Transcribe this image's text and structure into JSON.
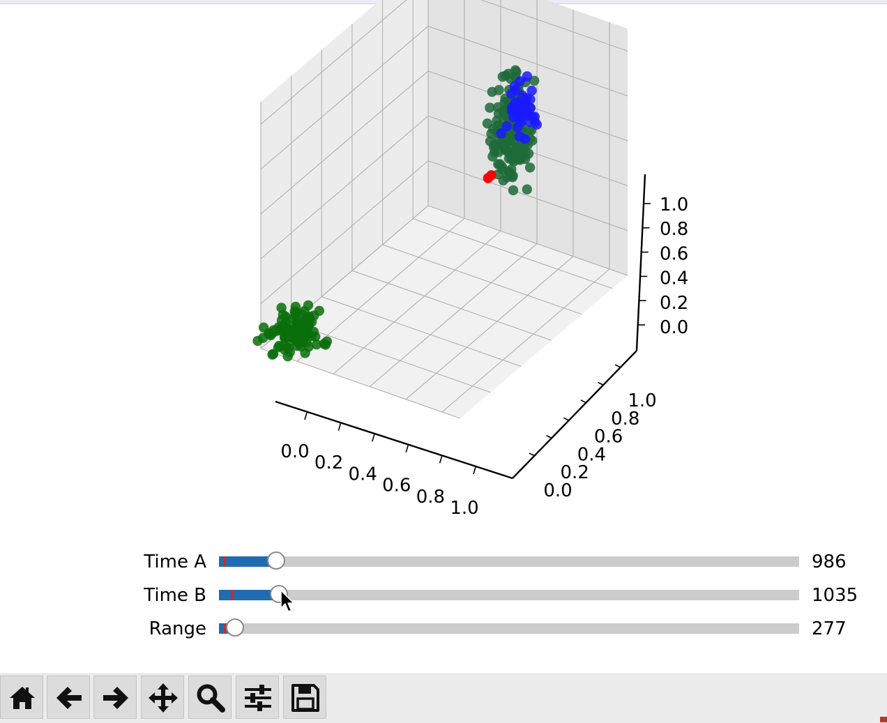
{
  "chart_data": {
    "type": "scatter3d",
    "x_ticks": [
      "0.0",
      "0.2",
      "0.4",
      "0.6",
      "0.8",
      "1.0"
    ],
    "y_ticks": [
      "0.0",
      "0.2",
      "0.4",
      "0.6",
      "0.8",
      "1.0"
    ],
    "z_ticks": [
      "0.0",
      "0.2",
      "0.4",
      "0.6",
      "0.8",
      "1.0"
    ],
    "xlim": [
      0,
      1.1
    ],
    "ylim": [
      0,
      1.1
    ],
    "zlim": [
      0,
      1.1
    ],
    "grid": true,
    "colors": {
      "cluster_a": "#0a6e0a",
      "cluster_b": "#0a6e0a",
      "cluster_b_blue": "#1a1aff",
      "marker": "#ff0000"
    },
    "series": [
      {
        "color": "#0a6e0a",
        "cluster_center": [
          0.1,
          0.1,
          0.05
        ],
        "cluster_spread": [
          0.12,
          0.12,
          0.06
        ],
        "count": 110
      },
      {
        "color": "#1f6a3a",
        "cluster_center": [
          0.62,
          0.9,
          0.62
        ],
        "cluster_spread": [
          0.09,
          0.09,
          0.22
        ],
        "count": 150
      },
      {
        "color": "#1a1aff",
        "cluster_center": [
          0.65,
          0.93,
          0.72
        ],
        "cluster_spread": [
          0.07,
          0.07,
          0.12
        ],
        "count": 40
      },
      {
        "color": "#ff0000",
        "points": [
          [
            0.54,
            0.85,
            0.42
          ],
          [
            0.55,
            0.86,
            0.43
          ]
        ]
      }
    ]
  },
  "sliders": [
    {
      "label": "Time A",
      "value": "986",
      "fraction": 0.099,
      "init_fraction": 0.009
    },
    {
      "label": "Time B",
      "value": "1035",
      "fraction": 0.103,
      "init_fraction": 0.021
    },
    {
      "label": "Range",
      "value": "277",
      "fraction": 0.028,
      "init_fraction": 0.009
    }
  ],
  "toolbar": {
    "buttons": [
      {
        "name": "home-button",
        "icon": "home-icon"
      },
      {
        "name": "back-button",
        "icon": "arrow-left-icon"
      },
      {
        "name": "forward-button",
        "icon": "arrow-right-icon"
      },
      {
        "name": "pan-button",
        "icon": "move-icon"
      },
      {
        "name": "zoom-button",
        "icon": "magnifier-icon"
      },
      {
        "name": "configure-subplots-button",
        "icon": "sliders-icon"
      },
      {
        "name": "save-button",
        "icon": "floppy-disk-icon"
      }
    ]
  }
}
